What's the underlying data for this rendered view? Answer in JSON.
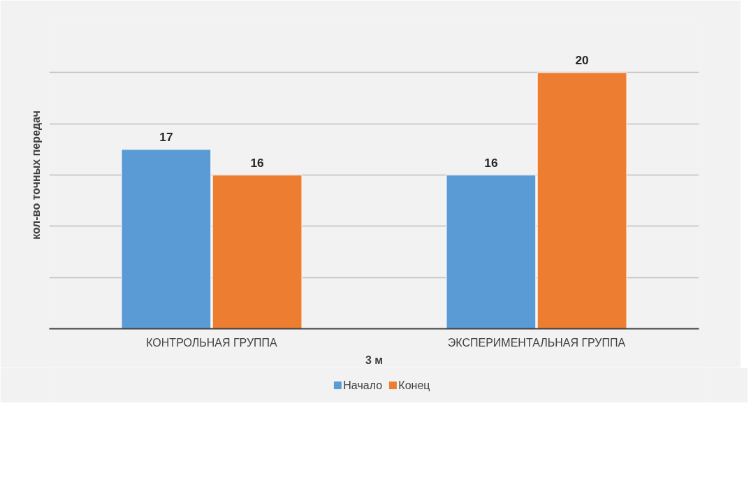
{
  "chart_data": {
    "type": "bar",
    "xlabel": "3 м",
    "ylabel": "кол-во точных передач",
    "categories": [
      "КОНТРОЛЬНАЯ ГРУППА",
      "ЭКСПЕРИМЕНТАЛЬНАЯ ГРУППА"
    ],
    "series": [
      {
        "name": "Начало",
        "color": "#5b9bd5",
        "values": [
          17,
          16
        ]
      },
      {
        "name": "Конец",
        "color": "#ed7d31",
        "values": [
          16,
          20
        ]
      }
    ],
    "ylim": [
      10,
      22
    ],
    "yticks": [
      {
        "value": 10,
        "label": null
      },
      {
        "value": 12,
        "label": null
      },
      {
        "value": 14,
        "label": null
      },
      {
        "value": 16,
        "label": null
      },
      {
        "value": 18,
        "label": null
      },
      {
        "value": 20,
        "label": null
      },
      {
        "value": 22,
        "label": null
      }
    ],
    "tick_labels": "x",
    "grid": "y",
    "legend": "bottom",
    "data_labels": true
  }
}
